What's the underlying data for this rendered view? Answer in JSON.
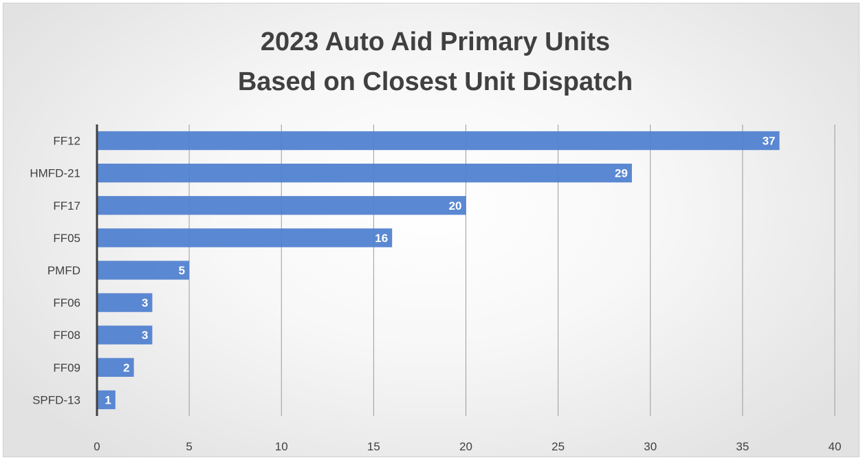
{
  "chart_data": {
    "type": "bar",
    "orientation": "horizontal",
    "title": [
      "2023 Auto Aid Primary Units",
      "Based on Closest Unit Dispatch"
    ],
    "categories": [
      "FF12",
      "HMFD-21",
      "FF17",
      "FF05",
      "PMFD",
      "FF06",
      "FF08",
      "FF09",
      "SPFD-13"
    ],
    "values": [
      37,
      29,
      20,
      16,
      5,
      3,
      3,
      2,
      1
    ],
    "xlim": [
      0,
      40
    ],
    "xticks": [
      0,
      5,
      10,
      15,
      20,
      25,
      30,
      35,
      40
    ],
    "grid": true,
    "legend": "none",
    "bar_color": "#4f7fcf",
    "xlabel": "",
    "ylabel": ""
  }
}
